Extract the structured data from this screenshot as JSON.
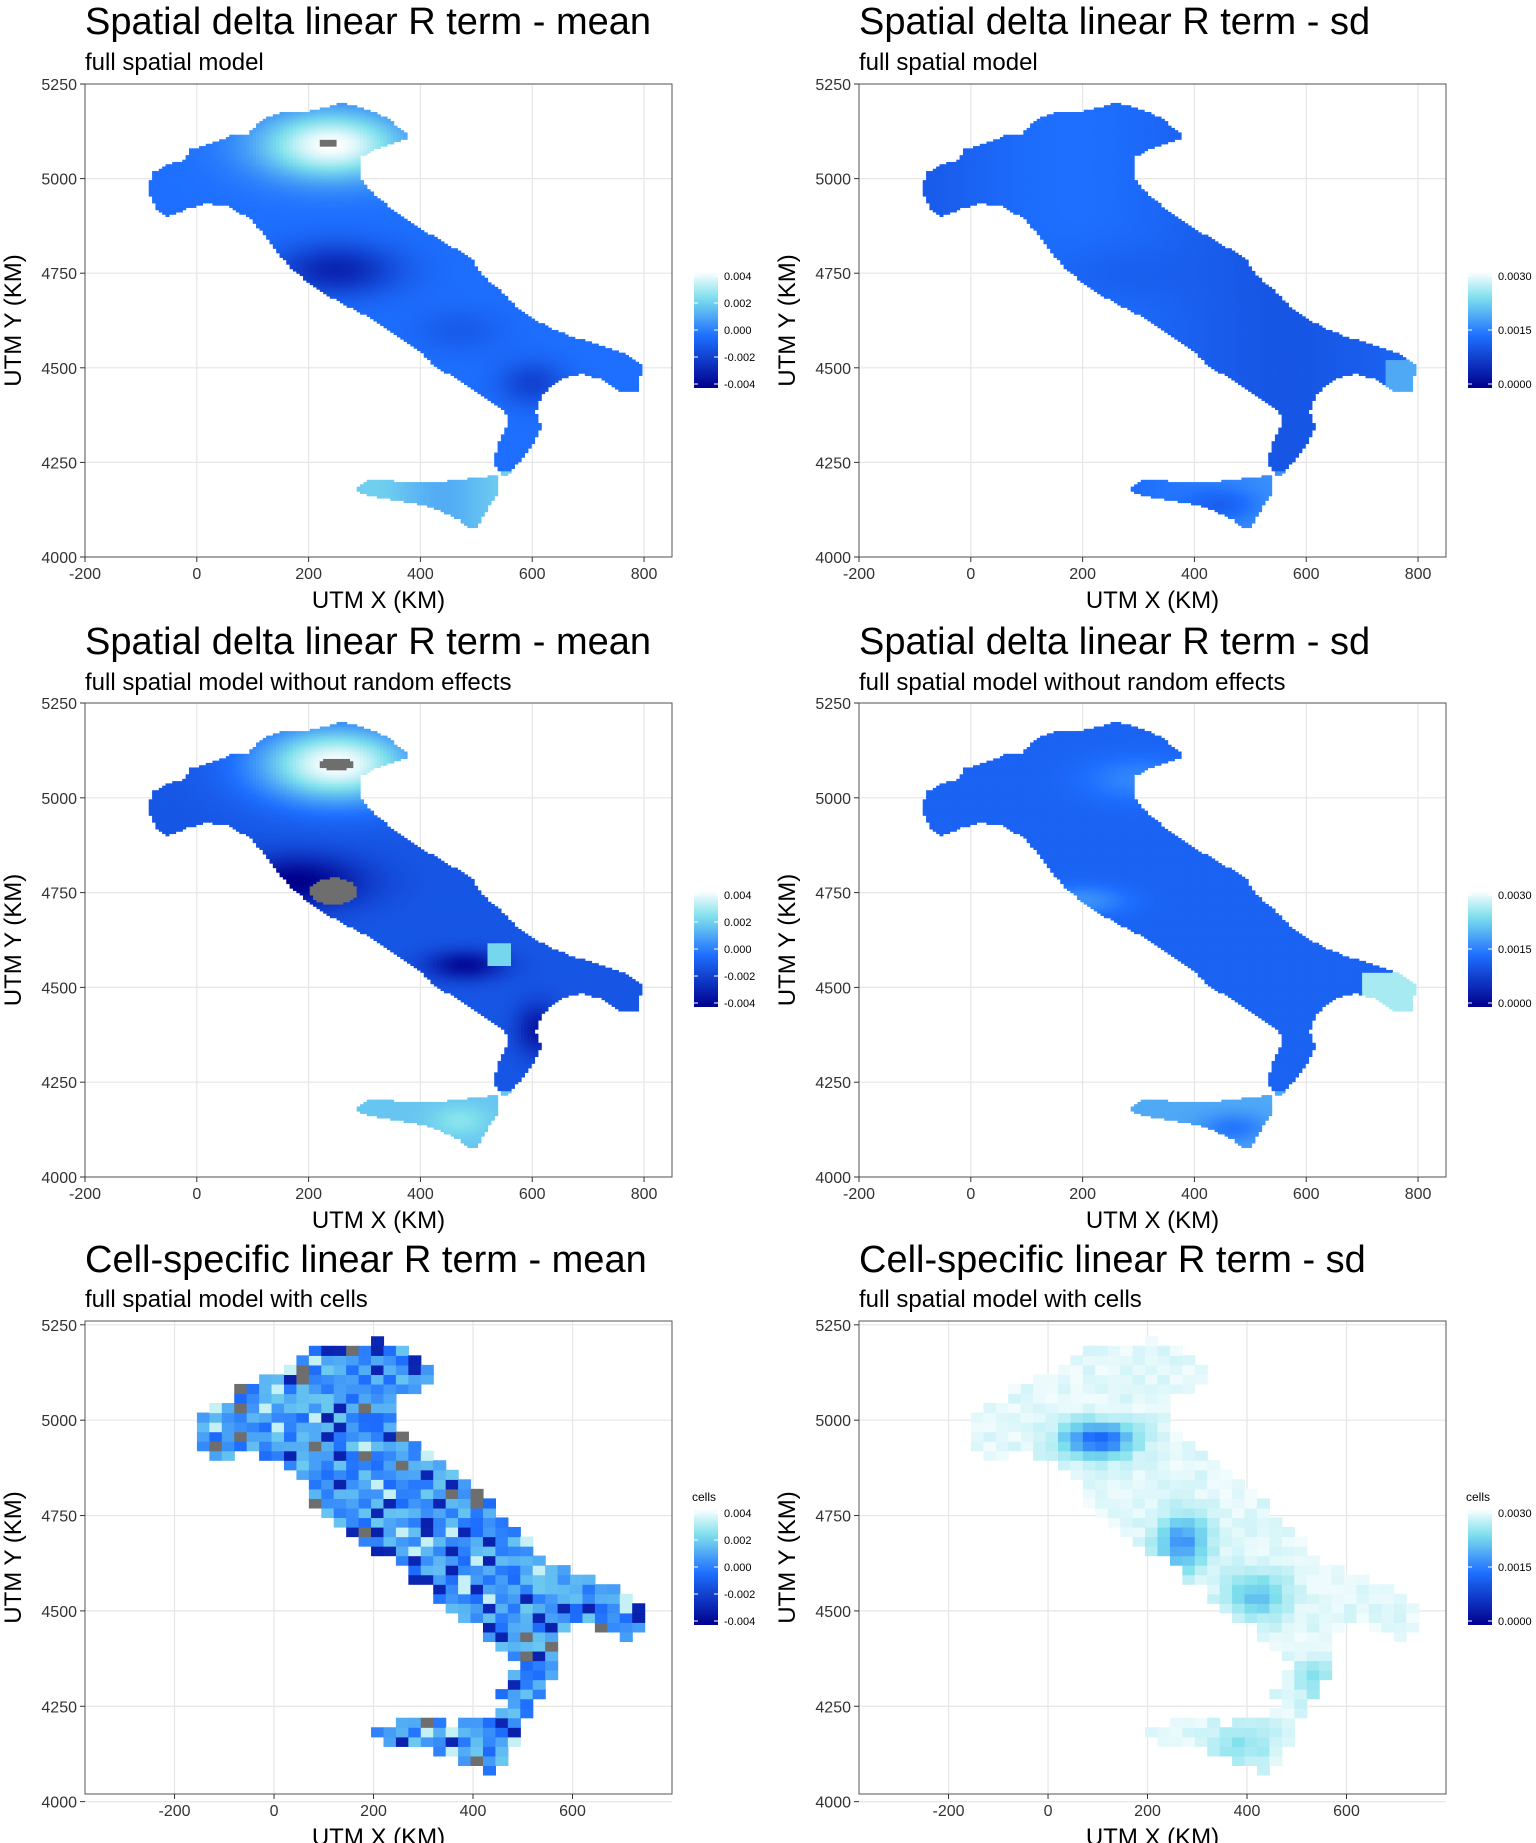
{
  "chart_data": [
    {
      "type": "heatmap",
      "title": "Spatial delta linear R term - mean",
      "subtitle": "full spatial model",
      "xlabel": "UTM X (KM)",
      "ylabel": "UTM Y (KM)",
      "xlim": [
        -200,
        850
      ],
      "ylim": [
        4000,
        5250
      ],
      "x_ticks": [
        "-200",
        "0",
        "200",
        "400",
        "600",
        "800"
      ],
      "y_ticks": [
        "4000",
        "4250",
        "4500",
        "4750",
        "5000",
        "5250"
      ],
      "grid": true,
      "legend": {
        "title": "",
        "min": -0.004,
        "max": 0.004,
        "ticks": [
          "0.004",
          "0.002",
          "0.000",
          "-0.002",
          "-0.004"
        ],
        "placement": "right"
      },
      "resolution": "fine",
      "notes_gray_na": true
    },
    {
      "type": "heatmap",
      "title": "Spatial delta linear R term - sd",
      "subtitle": "full spatial model",
      "xlabel": "UTM X (KM)",
      "ylabel": "UTM Y (KM)",
      "xlim": [
        -200,
        850
      ],
      "ylim": [
        4000,
        5250
      ],
      "x_ticks": [
        "-200",
        "0",
        "200",
        "400",
        "600",
        "800"
      ],
      "y_ticks": [
        "4000",
        "4250",
        "4500",
        "4750",
        "5000",
        "5250"
      ],
      "grid": true,
      "legend": {
        "title": "",
        "min": 0,
        "max": 0.003,
        "ticks": [
          "0.0030",
          "0.0015",
          "0.0000"
        ],
        "placement": "right"
      },
      "resolution": "fine"
    },
    {
      "type": "heatmap",
      "title": "Spatial delta linear R term - mean",
      "subtitle": "full spatial model without random effects",
      "xlabel": "UTM X (KM)",
      "ylabel": "UTM Y (KM)",
      "xlim": [
        -200,
        850
      ],
      "ylim": [
        4000,
        5250
      ],
      "x_ticks": [
        "-200",
        "0",
        "200",
        "400",
        "600",
        "800"
      ],
      "y_ticks": [
        "4000",
        "4250",
        "4500",
        "4750",
        "5000",
        "5250"
      ],
      "grid": true,
      "legend": {
        "title": "",
        "min": -0.004,
        "max": 0.004,
        "ticks": [
          "0.004",
          "0.002",
          "0.000",
          "-0.002",
          "-0.004"
        ],
        "placement": "right"
      },
      "resolution": "fine"
    },
    {
      "type": "heatmap",
      "title": "Spatial delta linear R term - sd",
      "subtitle": "full spatial model without random effects",
      "xlabel": "UTM X (KM)",
      "ylabel": "UTM Y (KM)",
      "xlim": [
        -200,
        850
      ],
      "ylim": [
        4000,
        5250
      ],
      "x_ticks": [
        "-200",
        "0",
        "200",
        "400",
        "600",
        "800"
      ],
      "y_ticks": [
        "4000",
        "4250",
        "4500",
        "4750",
        "5000",
        "5250"
      ],
      "grid": true,
      "legend": {
        "title": "",
        "min": 0,
        "max": 0.003,
        "ticks": [
          "0.0030",
          "0.0015",
          "0.0000"
        ],
        "placement": "right"
      },
      "resolution": "fine"
    },
    {
      "type": "heatmap",
      "title": "Cell-specific linear R term - mean",
      "subtitle": "full spatial model with cells",
      "xlabel": "UTM X (KM)",
      "ylabel": "UTM Y (KM)",
      "xlim": [
        -380,
        800
      ],
      "ylim": [
        4020,
        5260
      ],
      "x_ticks": [
        "-200",
        "0",
        "200",
        "400",
        "600"
      ],
      "y_ticks": [
        "4000",
        "4250",
        "4500",
        "4750",
        "5000",
        "5250"
      ],
      "grid": true,
      "legend": {
        "title": "cells",
        "min": -0.004,
        "max": 0.004,
        "ticks": [
          "0.004",
          "0.002",
          "0.000",
          "-0.002",
          "-0.004"
        ],
        "placement": "right"
      },
      "resolution": "coarse"
    },
    {
      "type": "heatmap",
      "title": "Cell-specific linear R term - sd",
      "subtitle": "full spatial model with cells",
      "xlabel": "UTM X (KM)",
      "ylabel": "UTM Y (KM)",
      "xlim": [
        -380,
        800
      ],
      "ylim": [
        4020,
        5260
      ],
      "x_ticks": [
        "-200",
        "0",
        "200",
        "400",
        "600"
      ],
      "y_ticks": [
        "4000",
        "4250",
        "4500",
        "4750",
        "5000",
        "5250"
      ],
      "grid": true,
      "legend": {
        "title": "cells",
        "min": 0,
        "max": 0.003,
        "ticks": [
          "0.0030",
          "0.0015",
          "0.0000"
        ],
        "placement": "right"
      },
      "resolution": "coarse"
    }
  ],
  "colors": {
    "scale_low": "#00008b",
    "scale_mid": "#1e6fff",
    "scale_high_light": "#7fe0ec",
    "scale_top": "#ffffff",
    "na_gray": "#6e6e6e",
    "panel_grid": "#e6e6e6",
    "panel_border": "#555555"
  }
}
